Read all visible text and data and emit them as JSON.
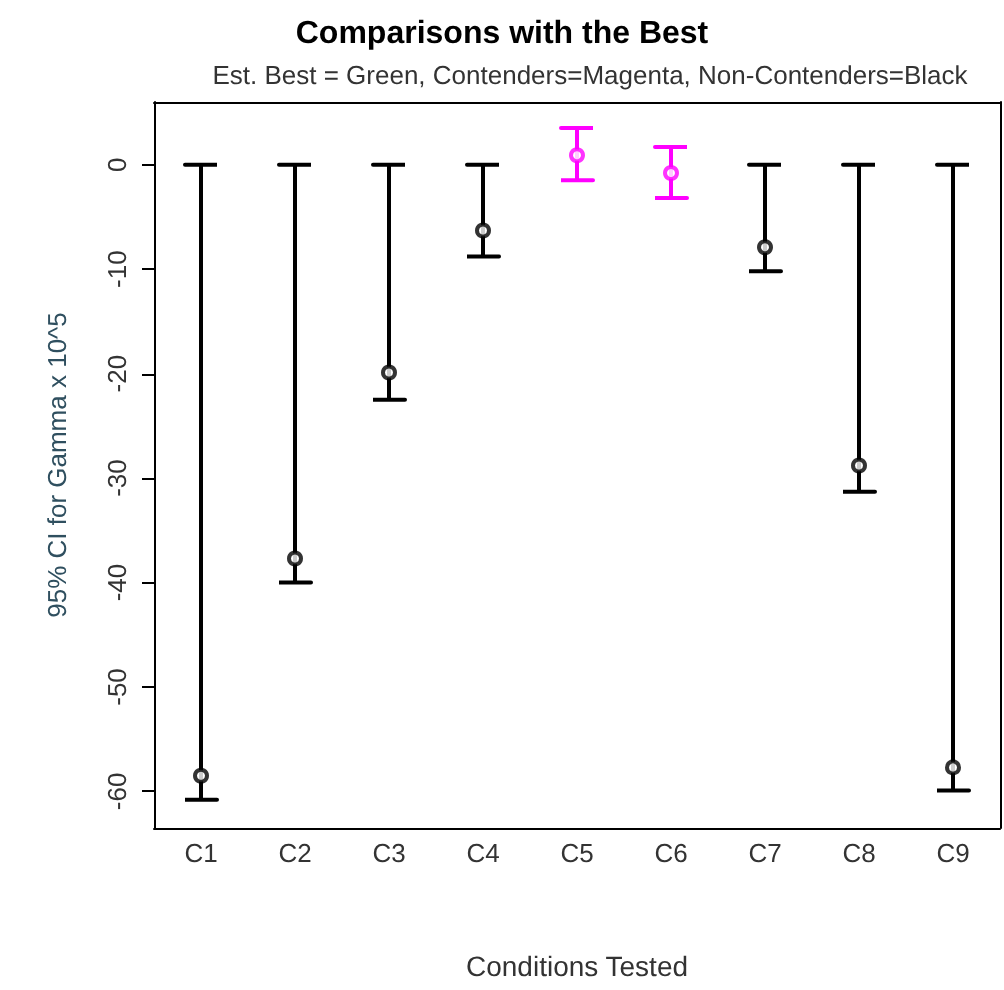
{
  "chart_data": {
    "type": "scatter",
    "title": "Comparisons with the Best",
    "subtitle": "Est. Best = Green, Contenders=Magenta, Non-Contenders=Black",
    "xlabel": "Conditions Tested",
    "ylabel": "95% CI for Gamma x 10^5",
    "categories": [
      "C1",
      "C2",
      "C3",
      "C4",
      "C5",
      "C6",
      "C7",
      "C8",
      "C9"
    ],
    "values": [
      -58.5,
      -37.7,
      -19.9,
      -6.3,
      0.9,
      -0.8,
      -7.9,
      -28.8,
      -57.7
    ],
    "errors": [
      [
        -60.8,
        0
      ],
      [
        -40,
        0
      ],
      [
        -22.5,
        0
      ],
      [
        -8.8,
        0
      ],
      [
        -1.5,
        3.5
      ],
      [
        -3.2,
        1.7
      ],
      [
        -10.2,
        0
      ],
      [
        -31.3,
        0
      ],
      [
        -59.9,
        0
      ]
    ],
    "colors": [
      "#000000",
      "#000000",
      "#000000",
      "#000000",
      "#ff00ff",
      "#ff00ff",
      "#000000",
      "#000000",
      "#000000"
    ],
    "ylim": [
      -63.5,
      6
    ],
    "yticks": [
      0,
      -10,
      -20,
      -30,
      -40,
      -50,
      -60
    ],
    "marker": "circle",
    "grid": false
  }
}
